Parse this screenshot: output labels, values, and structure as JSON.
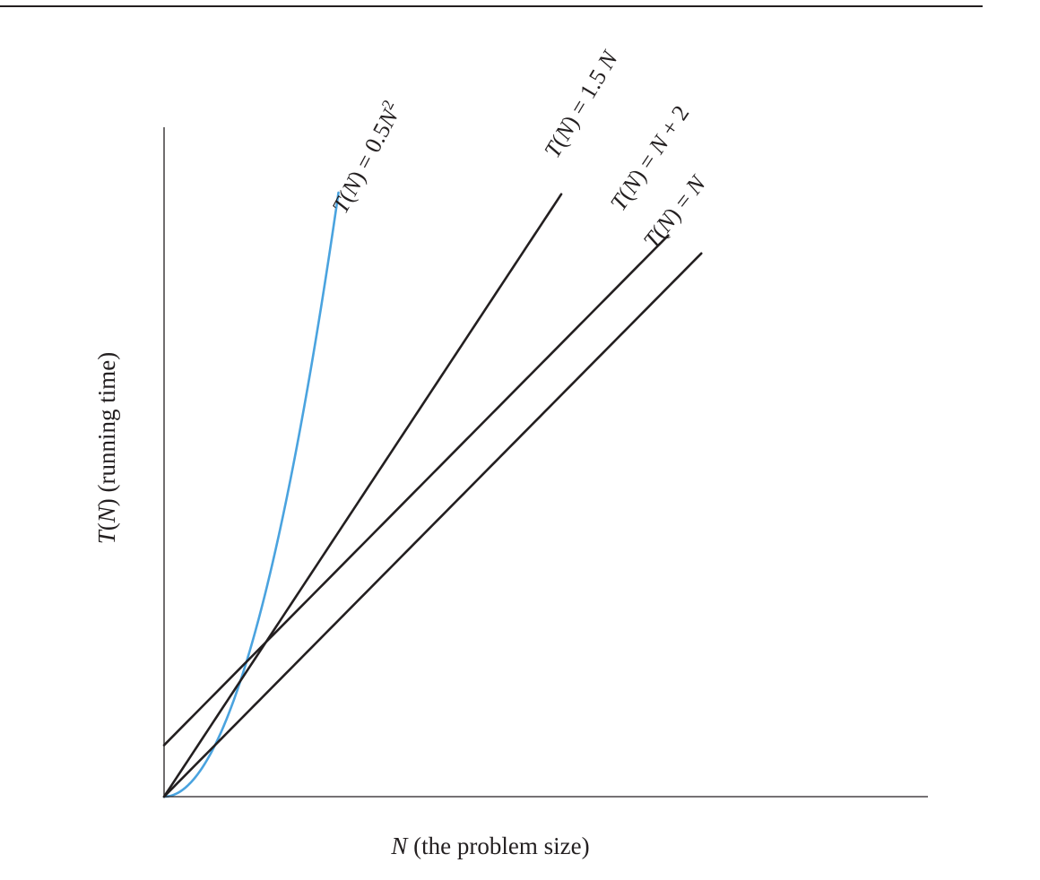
{
  "chart_data": {
    "type": "line",
    "xlabel": "N (the problem size)",
    "ylabel": "T(N) (running time)",
    "xlabel_parts": [
      {
        "text": "N",
        "italic": true
      },
      {
        "text": " (the problem size)",
        "italic": false
      }
    ],
    "ylabel_parts": [
      {
        "text": "T",
        "italic": true
      },
      {
        "text": "(",
        "italic": false
      },
      {
        "text": "N",
        "italic": true
      },
      {
        "text": ") (running time)",
        "italic": false
      }
    ],
    "axis_ticks": false,
    "grid": false,
    "legend": "inline labels along curves",
    "series": [
      {
        "name": "T(N) = 0.5N²",
        "label_parts": [
          {
            "text": "T",
            "italic": true
          },
          {
            "text": "(",
            "italic": false
          },
          {
            "text": "N",
            "italic": true
          },
          {
            "text": ") = 0.5",
            "italic": false
          },
          {
            "text": "N",
            "italic": true
          },
          {
            "text": "2",
            "italic": false,
            "sup": true
          }
        ],
        "kind": "quadratic",
        "a": 0.5,
        "b": 0,
        "color": "#4aa3df",
        "x_range": [
          0,
          6.85
        ]
      },
      {
        "name": "T(N) = 1.5 N",
        "label_parts": [
          {
            "text": "T",
            "italic": true
          },
          {
            "text": "(",
            "italic": false
          },
          {
            "text": "N",
            "italic": true
          },
          {
            "text": ") = 1.5 ",
            "italic": false
          },
          {
            "text": "N",
            "italic": true
          }
        ],
        "kind": "linear",
        "a": 1.5,
        "b": 0,
        "color": "#231f20",
        "x_range": [
          0,
          15.6
        ]
      },
      {
        "name": "T(N) = N + 2",
        "label_parts": [
          {
            "text": "T",
            "italic": true
          },
          {
            "text": "(",
            "italic": false
          },
          {
            "text": "N",
            "italic": true
          },
          {
            "text": ") = ",
            "italic": false
          },
          {
            "text": "N",
            "italic": true
          },
          {
            "text": " + 2",
            "italic": false
          }
        ],
        "kind": "linear",
        "a": 1,
        "b": 2,
        "color": "#231f20",
        "x_range": [
          0,
          19.8
        ]
      },
      {
        "name": "T(N) = N",
        "label_parts": [
          {
            "text": "T",
            "italic": true
          },
          {
            "text": "(",
            "italic": false
          },
          {
            "text": "N",
            "italic": true
          },
          {
            "text": ") = ",
            "italic": false
          },
          {
            "text": "N",
            "italic": true
          }
        ],
        "kind": "linear",
        "a": 1,
        "b": 0,
        "color": "#231f20",
        "x_range": [
          0,
          21.1
        ]
      }
    ],
    "xlim": [
      0,
      30
    ],
    "ylim": [
      0,
      26
    ]
  }
}
